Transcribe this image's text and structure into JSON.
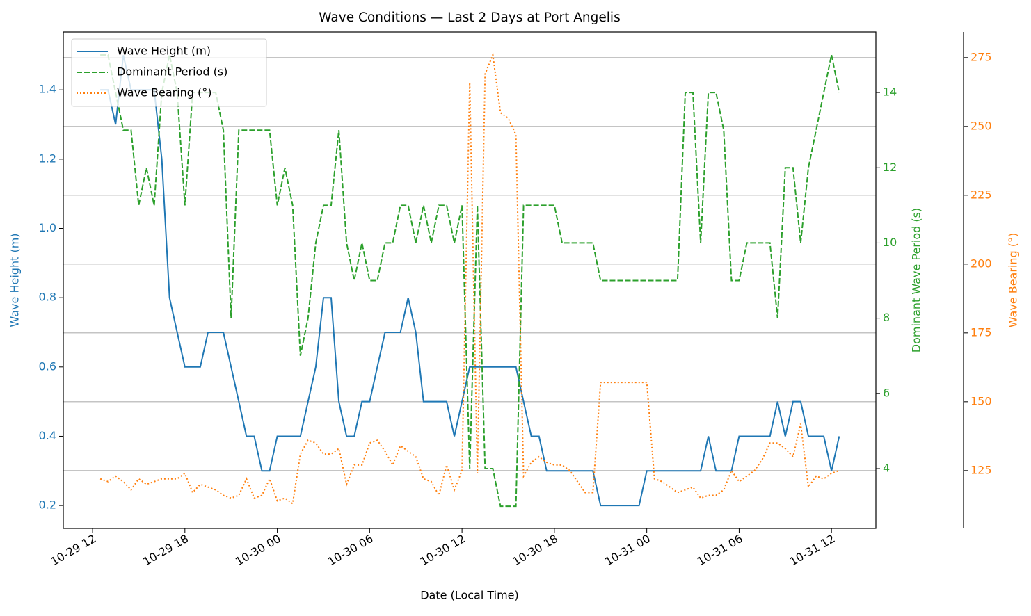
{
  "chart_data": {
    "type": "line",
    "title": "Wave Conditions — Last 2 Days at Port Angelis",
    "xlabel": "Date (Local Time)",
    "ylabel": "Wave Height (m)",
    "y2label": "Dominant Wave Period (s)",
    "y3label": "Wave Bearing (°)",
    "x": [
      "10-29 12:30",
      "10-29 13:00",
      "10-29 13:30",
      "10-29 14:00",
      "10-29 14:30",
      "10-29 15:00",
      "10-29 15:30",
      "10-29 16:00",
      "10-29 16:30",
      "10-29 17:00",
      "10-29 17:30",
      "10-29 18:00",
      "10-29 18:30",
      "10-29 19:00",
      "10-29 19:30",
      "10-29 20:00",
      "10-29 20:30",
      "10-29 21:00",
      "10-29 21:30",
      "10-29 22:00",
      "10-29 22:30",
      "10-29 23:00",
      "10-29 23:30",
      "10-30 00:00",
      "10-30 00:30",
      "10-30 01:00",
      "10-30 01:30",
      "10-30 02:00",
      "10-30 02:30",
      "10-30 03:00",
      "10-30 03:30",
      "10-30 04:00",
      "10-30 04:30",
      "10-30 05:00",
      "10-30 05:30",
      "10-30 06:00",
      "10-30 06:30",
      "10-30 07:00",
      "10-30 07:30",
      "10-30 08:00",
      "10-30 08:30",
      "10-30 09:00",
      "10-30 09:30",
      "10-30 10:00",
      "10-30 10:30",
      "10-30 11:00",
      "10-30 11:30",
      "10-30 12:00",
      "10-30 12:30",
      "10-30 13:00",
      "10-30 13:30",
      "10-30 14:00",
      "10-30 14:30",
      "10-30 15:00",
      "10-30 15:30",
      "10-30 16:00",
      "10-30 16:30",
      "10-30 17:00",
      "10-30 17:30",
      "10-30 18:00",
      "10-30 18:30",
      "10-30 19:00",
      "10-30 19:30",
      "10-30 20:00",
      "10-30 20:30",
      "10-30 21:00",
      "10-30 21:30",
      "10-30 22:00",
      "10-30 22:30",
      "10-30 23:00",
      "10-30 23:30",
      "10-31 00:00",
      "10-31 00:30",
      "10-31 01:00",
      "10-31 01:30",
      "10-31 02:00",
      "10-31 02:30",
      "10-31 03:00",
      "10-31 03:30",
      "10-31 04:00",
      "10-31 04:30",
      "10-31 05:00",
      "10-31 05:30",
      "10-31 06:00",
      "10-31 06:30",
      "10-31 07:00",
      "10-31 07:30",
      "10-31 08:00",
      "10-31 08:30",
      "10-31 09:00",
      "10-31 09:30",
      "10-31 10:00",
      "10-31 10:30",
      "10-31 11:00",
      "10-31 11:30",
      "10-31 12:00",
      "10-31 12:30"
    ],
    "series": [
      {
        "name": "Wave Height (m)",
        "color": "#1f77b4",
        "linestyle": "solid",
        "axis": "y",
        "values": [
          1.4,
          1.4,
          1.3,
          1.5,
          1.4,
          1.4,
          1.4,
          1.4,
          1.2,
          0.8,
          0.7,
          0.6,
          0.6,
          0.6,
          0.7,
          0.7,
          0.7,
          0.6,
          0.5,
          0.4,
          0.4,
          0.3,
          0.3,
          0.4,
          0.4,
          0.4,
          0.4,
          0.5,
          0.6,
          0.8,
          0.8,
          0.5,
          0.4,
          0.4,
          0.5,
          0.5,
          0.6,
          0.7,
          0.7,
          0.7,
          0.8,
          0.7,
          0.5,
          0.5,
          0.5,
          0.5,
          0.4,
          0.5,
          0.6,
          0.6,
          0.6,
          0.6,
          0.6,
          0.6,
          0.6,
          0.5,
          0.4,
          0.4,
          0.3,
          0.3,
          0.3,
          0.3,
          0.3,
          0.3,
          0.3,
          0.2,
          0.2,
          0.2,
          0.2,
          0.2,
          0.2,
          0.3,
          0.3,
          0.3,
          0.3,
          0.3,
          0.3,
          0.3,
          0.3,
          0.4,
          0.3,
          0.3,
          0.3,
          0.4,
          0.4,
          0.4,
          0.4,
          0.4,
          0.5,
          0.4,
          0.5,
          0.5,
          0.4,
          0.4,
          0.4,
          0.3,
          0.4
        ]
      },
      {
        "name": "Dominant Period (s)",
        "color": "#2ca02c",
        "linestyle": "dashed",
        "axis": "y2",
        "values": [
          15,
          15,
          14,
          13,
          13,
          11,
          12,
          11,
          14,
          15,
          14,
          11,
          14,
          14,
          14,
          14,
          13,
          8,
          13,
          13,
          13,
          13,
          13,
          11,
          12,
          11,
          7,
          8,
          10,
          11,
          11,
          13,
          10,
          9,
          10,
          9,
          9,
          10,
          10,
          11,
          11,
          10,
          11,
          10,
          11,
          11,
          10,
          11,
          4,
          11,
          4,
          4,
          3,
          3,
          3,
          11,
          11,
          11,
          11,
          11,
          10,
          10,
          10,
          10,
          10,
          9,
          9,
          9,
          9,
          9,
          9,
          9,
          9,
          9,
          9,
          9,
          14,
          14,
          10,
          14,
          14,
          13,
          9,
          9,
          10,
          10,
          10,
          10,
          8,
          12,
          12,
          10,
          12,
          13,
          14,
          15,
          14
        ]
      },
      {
        "name": "Wave Bearing (°)",
        "color": "#ff7f0e",
        "linestyle": "dotted",
        "axis": "y3",
        "values": [
          122,
          121,
          123,
          121,
          118,
          122,
          120,
          121,
          122,
          122,
          122,
          124,
          117,
          120,
          119,
          118,
          116,
          115,
          116,
          122,
          115,
          116,
          122,
          114,
          115,
          113,
          131,
          136,
          135,
          131,
          131,
          133,
          120,
          127,
          127,
          135,
          136,
          132,
          127,
          134,
          132,
          130,
          122,
          121,
          116,
          127,
          118,
          125,
          266,
          124,
          269,
          276,
          255,
          253,
          247,
          123,
          128,
          130,
          128,
          127,
          127,
          125,
          121,
          117,
          117,
          157,
          157,
          157,
          157,
          157,
          157,
          157,
          122,
          121,
          119,
          117,
          118,
          119,
          115,
          116,
          116,
          118,
          125,
          121,
          123,
          125,
          129,
          135,
          135,
          133,
          130,
          142,
          119,
          123,
          122,
          124,
          125
        ]
      }
    ],
    "xlim": [
      "10-29 10:06",
      "10-31 14:53"
    ],
    "xticks": [
      {
        "value": "10-29 12:00",
        "label": "10-29 12"
      },
      {
        "value": "10-29 18:00",
        "label": "10-29 18"
      },
      {
        "value": "10-30 00:00",
        "label": "10-30 00"
      },
      {
        "value": "10-30 06:00",
        "label": "10-30 06"
      },
      {
        "value": "10-30 12:00",
        "label": "10-30 12"
      },
      {
        "value": "10-30 18:00",
        "label": "10-30 18"
      },
      {
        "value": "10-31 00:00",
        "label": "10-31 00"
      },
      {
        "value": "10-31 06:00",
        "label": "10-31 06"
      },
      {
        "value": "10-31 12:00",
        "label": "10-31 12"
      }
    ],
    "ylim": [
      0.134,
      1.567
    ],
    "yticks": [
      0.2,
      0.4,
      0.6,
      0.8,
      1.0,
      1.2,
      1.4
    ],
    "y2lim": [
      2.41,
      15.61
    ],
    "y2ticks": [
      4,
      6,
      8,
      10,
      12,
      14
    ],
    "y3lim": [
      104.0,
      284.3
    ],
    "y3ticks": [
      125,
      150,
      175,
      200,
      225,
      250,
      275
    ],
    "grid": "y3",
    "legend": "upper left"
  }
}
